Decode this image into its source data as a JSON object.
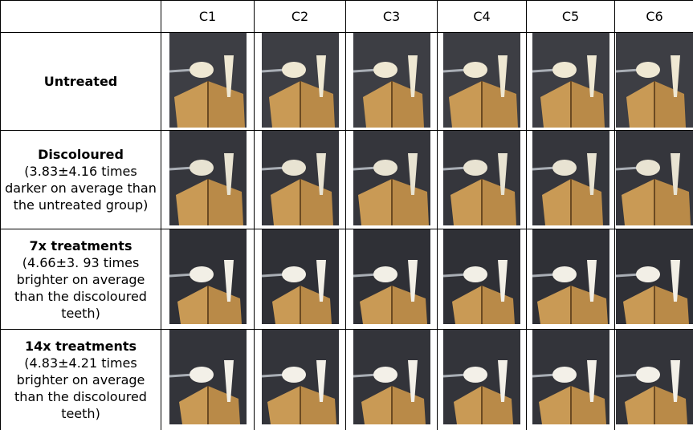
{
  "table": {
    "columns": [
      "C1",
      "C2",
      "C3",
      "C4",
      "C5",
      "C6"
    ],
    "rows": [
      {
        "label": "Untreated"
      },
      {
        "label": "Discoloured",
        "note": "(3.83±4.16 times darker on average than the untreated group)"
      },
      {
        "label": "7x treatments",
        "note": "(4.66±3. 93 times brighter on average than the discoloured teeth)"
      },
      {
        "label": "14x treatments",
        "note": "(4.83±4.21 times brighter on average than the discoloured teeth)"
      }
    ]
  }
}
